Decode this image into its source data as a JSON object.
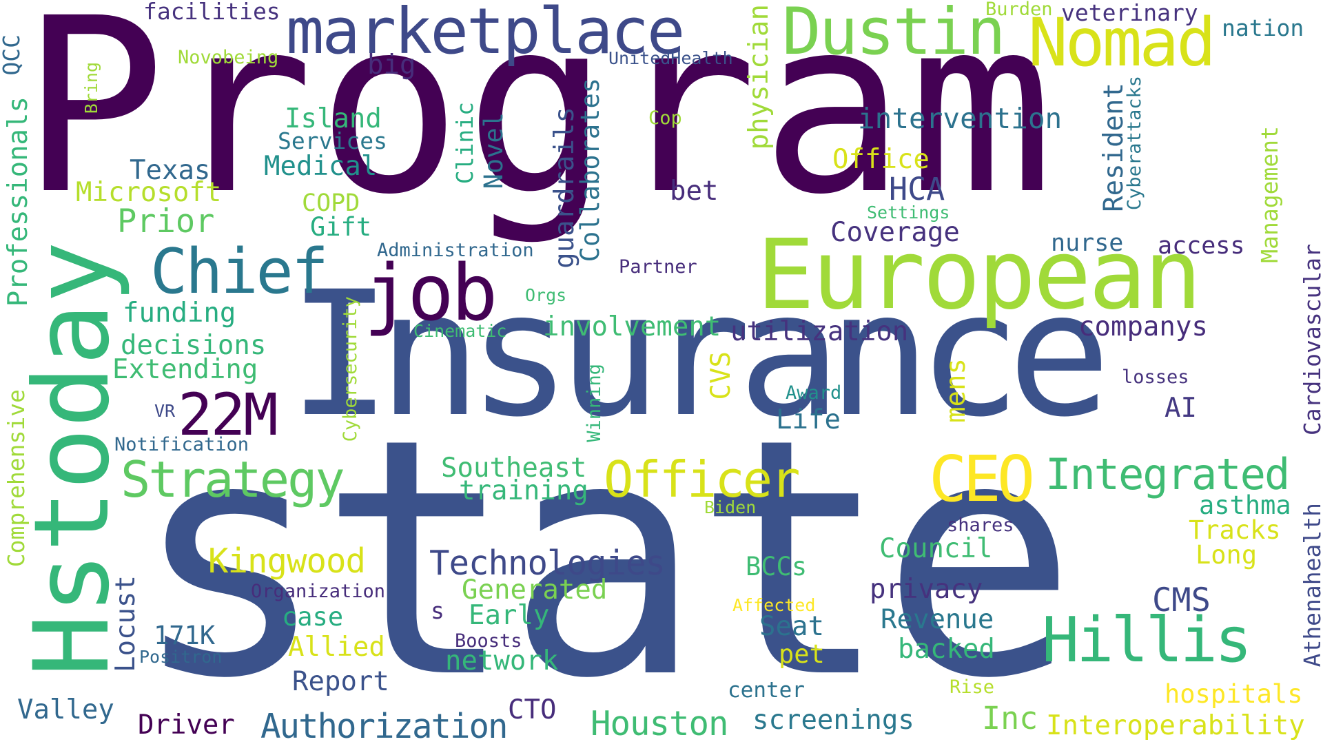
{
  "words": [
    {
      "text": "Program",
      "color": "#440154"
    },
    {
      "text": "state",
      "color": "#3b528b"
    },
    {
      "text": "Insurance",
      "color": "#3b528b"
    },
    {
      "text": "Hstoday",
      "color": "#35b779"
    },
    {
      "text": "European",
      "color": "#a0da39"
    },
    {
      "text": "marketplace",
      "color": "#3e4989"
    },
    {
      "text": "Dustin",
      "color": "#7ad151"
    },
    {
      "text": "Nomad",
      "color": "#d8e219"
    },
    {
      "text": "job",
      "color": "#440154"
    },
    {
      "text": "Chief",
      "color": "#2a788e"
    },
    {
      "text": "22M",
      "color": "#440154"
    },
    {
      "text": "CEO",
      "color": "#fde725"
    },
    {
      "text": "Hillis",
      "color": "#35b779"
    },
    {
      "text": "Officer",
      "color": "#d8e219"
    },
    {
      "text": "Integrated",
      "color": "#3fbc73"
    },
    {
      "text": "Strategy",
      "color": "#5ec962"
    },
    {
      "text": "Technologies",
      "color": "#3e4989"
    },
    {
      "text": "Authorization",
      "color": "#31688e"
    },
    {
      "text": "Kingwood",
      "color": "#d8e219"
    },
    {
      "text": "Houston",
      "color": "#3fbc73"
    },
    {
      "text": "intervention",
      "color": "#2c728e"
    },
    {
      "text": "facilities",
      "color": "#46327e"
    },
    {
      "text": "big",
      "color": "#472d7b"
    },
    {
      "text": "Island",
      "color": "#35b779"
    },
    {
      "text": "Services",
      "color": "#2a788e"
    },
    {
      "text": "Medical",
      "color": "#21918c"
    },
    {
      "text": "Texas",
      "color": "#31688e"
    },
    {
      "text": "Microsoft",
      "color": "#b5de2b"
    },
    {
      "text": "COPD",
      "color": "#a0da39"
    },
    {
      "text": "Prior",
      "color": "#5ec962"
    },
    {
      "text": "Gift",
      "color": "#27ad81"
    },
    {
      "text": "Novobeing",
      "color": "#a0da39"
    },
    {
      "text": "UnitedHealth",
      "color": "#3b528b"
    },
    {
      "text": "Cop",
      "color": "#a0da39"
    },
    {
      "text": "Office",
      "color": "#d8e219"
    },
    {
      "text": "HCA",
      "color": "#3e4989"
    },
    {
      "text": "bet",
      "color": "#472d7b"
    },
    {
      "text": "Coverage",
      "color": "#46327e"
    },
    {
      "text": "Settings",
      "color": "#3fbc73"
    },
    {
      "text": "nurse",
      "color": "#31688e"
    },
    {
      "text": "access",
      "color": "#472d7b"
    },
    {
      "text": "Administration",
      "color": "#31688e"
    },
    {
      "text": "Partner",
      "color": "#472d7b"
    },
    {
      "text": "funding",
      "color": "#27ad81"
    },
    {
      "text": "Orgs",
      "color": "#3fbc73"
    },
    {
      "text": "Cinematic",
      "color": "#3fbc73"
    },
    {
      "text": "involvement",
      "color": "#3fbc73"
    },
    {
      "text": "utilization",
      "color": "#46327e"
    },
    {
      "text": "companys",
      "color": "#472d7b"
    },
    {
      "text": "decisions",
      "color": "#35b779"
    },
    {
      "text": "Extending",
      "color": "#3fbc73"
    },
    {
      "text": "losses",
      "color": "#46327e"
    },
    {
      "text": "AI",
      "color": "#443983"
    },
    {
      "text": "Award",
      "color": "#21918c"
    },
    {
      "text": "Life",
      "color": "#2c728e"
    },
    {
      "text": "VR",
      "color": "#3e4989"
    },
    {
      "text": "Notification",
      "color": "#31688e"
    },
    {
      "text": "Southeast",
      "color": "#3fbc73"
    },
    {
      "text": "training",
      "color": "#35b779"
    },
    {
      "text": "Biden",
      "color": "#a0da39"
    },
    {
      "text": "asthma",
      "color": "#27ad81"
    },
    {
      "text": "shares",
      "color": "#46327e"
    },
    {
      "text": "Tracks",
      "color": "#d8e219"
    },
    {
      "text": "Council",
      "color": "#3fbc73"
    },
    {
      "text": "Long",
      "color": "#d8e219"
    },
    {
      "text": "BCCs",
      "color": "#3fbc73"
    },
    {
      "text": "Organization",
      "color": "#472d7b"
    },
    {
      "text": "Generated",
      "color": "#7ad151"
    },
    {
      "text": "privacy",
      "color": "#46327e"
    },
    {
      "text": "CMS",
      "color": "#3e4989"
    },
    {
      "text": "s",
      "color": "#472d7b"
    },
    {
      "text": "Early",
      "color": "#35b779"
    },
    {
      "text": "Affected",
      "color": "#fde725"
    },
    {
      "text": "Revenue",
      "color": "#2a788e"
    },
    {
      "text": "case",
      "color": "#27ad81"
    },
    {
      "text": "171K",
      "color": "#31688e"
    },
    {
      "text": "Seat",
      "color": "#2c728e"
    },
    {
      "text": "Allied",
      "color": "#d8e219"
    },
    {
      "text": "Boosts",
      "color": "#472d7b"
    },
    {
      "text": "pet",
      "color": "#d8e219"
    },
    {
      "text": "backed",
      "color": "#35b779"
    },
    {
      "text": "Positron",
      "color": "#31688e"
    },
    {
      "text": "network",
      "color": "#35b779"
    },
    {
      "text": "Report",
      "color": "#3b528b"
    },
    {
      "text": "Rise",
      "color": "#b5de2b"
    },
    {
      "text": "center",
      "color": "#2c728e"
    },
    {
      "text": "hospitals",
      "color": "#fde725"
    },
    {
      "text": "Valley",
      "color": "#31688e"
    },
    {
      "text": "CTO",
      "color": "#472d7b"
    },
    {
      "text": "Driver",
      "color": "#440154"
    },
    {
      "text": "screenings",
      "color": "#2a788e"
    },
    {
      "text": "Inc",
      "color": "#7ad151"
    },
    {
      "text": "Interoperability",
      "color": "#d8e219"
    },
    {
      "text": "Burden",
      "color": "#a0da39"
    },
    {
      "text": "veterinary",
      "color": "#46327e"
    },
    {
      "text": "nation",
      "color": "#2a788e"
    },
    {
      "text": "QCC",
      "color": "#31688e"
    },
    {
      "text": "Bring",
      "color": "#a0da39"
    },
    {
      "text": "Professionals",
      "color": "#35b779"
    },
    {
      "text": "physician",
      "color": "#a0da39"
    },
    {
      "text": "Clinic",
      "color": "#27ad81"
    },
    {
      "text": "Novel",
      "color": "#2c728e"
    },
    {
      "text": "guardrails",
      "color": "#3b528b"
    },
    {
      "text": "Collaborates",
      "color": "#2c728e"
    },
    {
      "text": "Resident",
      "color": "#31688e"
    },
    {
      "text": "Cyberattacks",
      "color": "#2a788e"
    },
    {
      "text": "Management",
      "color": "#a0da39"
    },
    {
      "text": "Cardiovascular",
      "color": "#46327e"
    },
    {
      "text": "Athenahealth",
      "color": "#3e4989"
    },
    {
      "text": "CVS",
      "color": "#d8e219"
    },
    {
      "text": "mens",
      "color": "#d8e219"
    },
    {
      "text": "Winning",
      "color": "#35b779"
    },
    {
      "text": "Cybersecurity",
      "color": "#a0da39"
    },
    {
      "text": "Comprehensive",
      "color": "#a0da39"
    },
    {
      "text": "Locust",
      "color": "#3b528b"
    }
  ]
}
